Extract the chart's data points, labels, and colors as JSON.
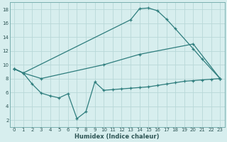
{
  "xlabel": "Humidex (Indice chaleur)",
  "xlim": [
    -0.5,
    23.5
  ],
  "ylim": [
    1,
    19
  ],
  "yticks": [
    2,
    4,
    6,
    8,
    10,
    12,
    14,
    16,
    18
  ],
  "xticks": [
    0,
    1,
    2,
    3,
    4,
    5,
    6,
    7,
    8,
    9,
    10,
    11,
    12,
    13,
    14,
    15,
    16,
    17,
    18,
    19,
    20,
    21,
    22,
    23
  ],
  "line_color": "#2e7d7d",
  "bg_color": "#d7eeee",
  "grid_color": "#b8d8d8",
  "series": [
    {
      "name": "line_top",
      "x": [
        0,
        1,
        13,
        14,
        15,
        16,
        17,
        18,
        20,
        21,
        23
      ],
      "y": [
        9.4,
        8.8,
        16.5,
        18.1,
        18.2,
        17.8,
        16.6,
        15.2,
        12.3,
        10.8,
        8.0
      ]
    },
    {
      "name": "line_mid",
      "x": [
        0,
        1,
        3,
        10,
        14,
        20,
        23
      ],
      "y": [
        9.4,
        8.8,
        8.0,
        10.0,
        11.5,
        13.0,
        8.0
      ]
    },
    {
      "name": "line_bot",
      "x": [
        0,
        1,
        2,
        3,
        4,
        5,
        6,
        7,
        8,
        9,
        10,
        11,
        12,
        13,
        14,
        15,
        16,
        17,
        18,
        19,
        20,
        21,
        22,
        23
      ],
      "y": [
        9.4,
        8.8,
        7.2,
        5.9,
        5.5,
        5.2,
        5.8,
        2.2,
        3.2,
        7.5,
        6.3,
        6.4,
        6.5,
        6.6,
        6.7,
        6.8,
        7.0,
        7.2,
        7.4,
        7.6,
        7.7,
        7.8,
        7.9,
        8.0
      ]
    }
  ],
  "tick_color": "#2e5555",
  "spine_color": "#7ab0b0"
}
